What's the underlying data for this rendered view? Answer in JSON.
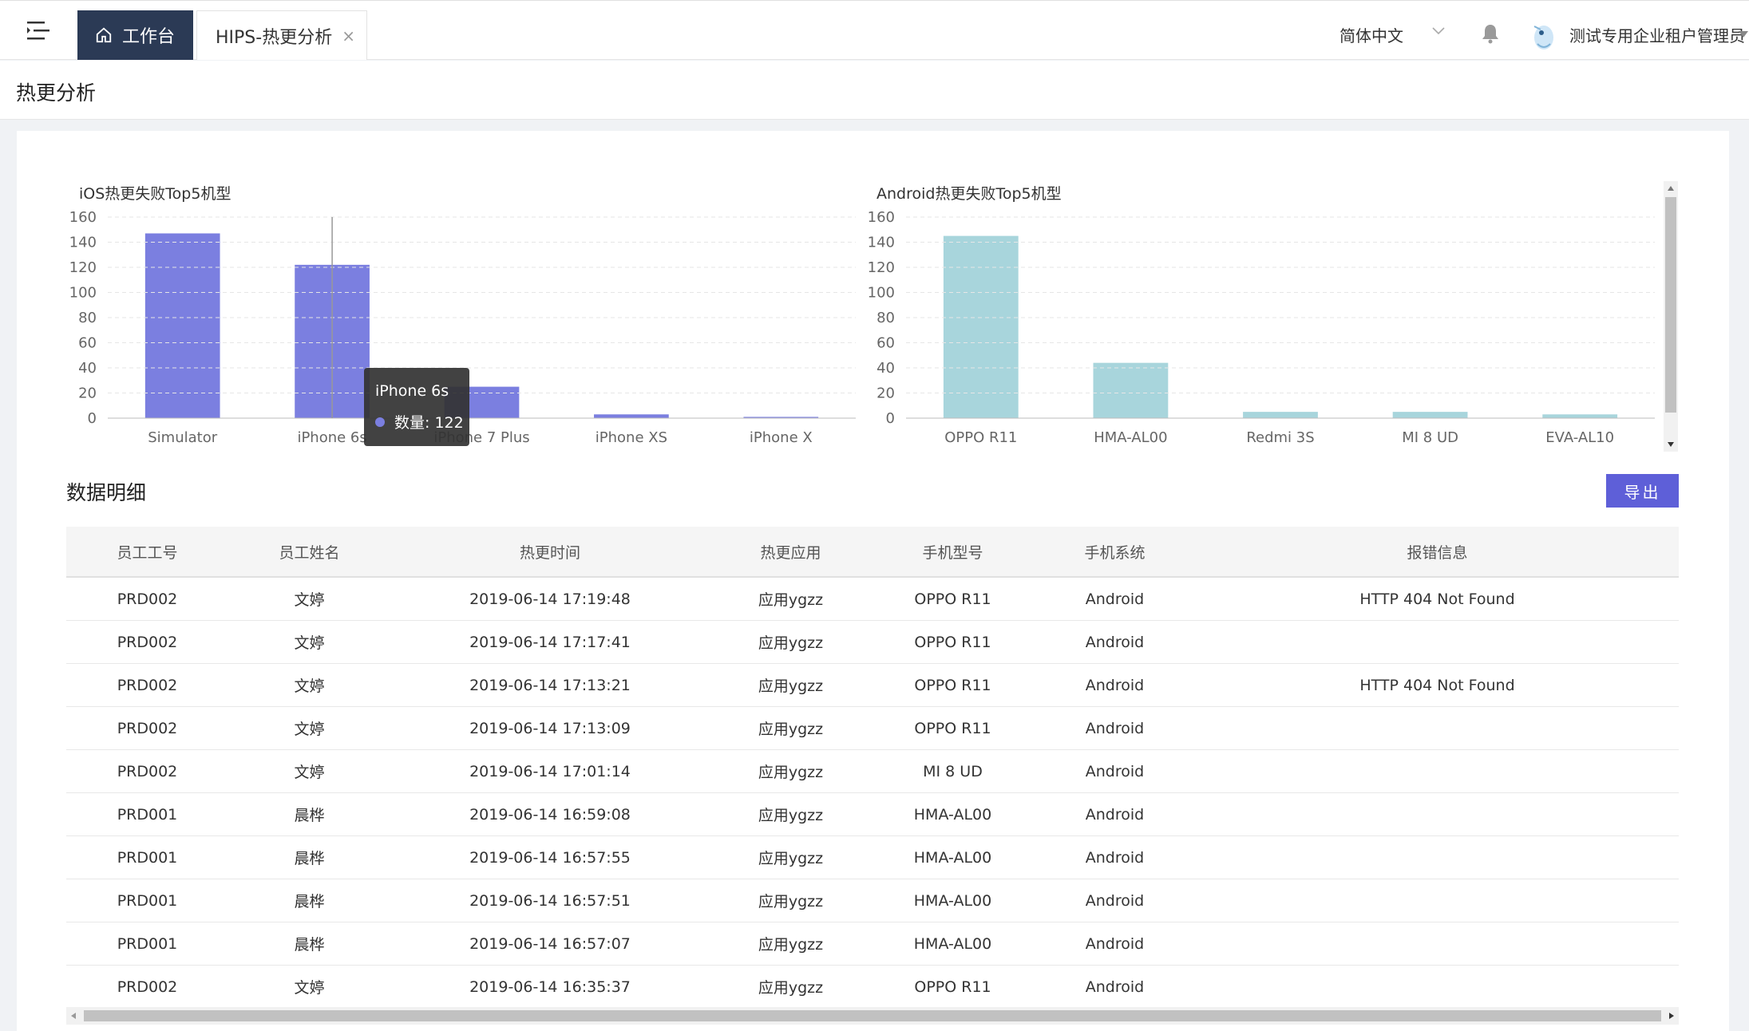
{
  "header": {
    "home_tab": "工作台",
    "active_tab": "HIPS-热更分析",
    "tab_close": "×",
    "language": "简体中文",
    "username": "测试专用企业租户管理员"
  },
  "page": {
    "title": "热更分析"
  },
  "ios_chart_title": "iOS热更失败Top5机型",
  "android_chart_title": "Android热更失败Top5机型",
  "tooltip": {
    "title": "iPhone 6s",
    "label": "数量: 122"
  },
  "chart_data": [
    {
      "type": "bar",
      "title": "iOS热更失败Top5机型",
      "categories": [
        "Simulator",
        "iPhone 6s",
        "iPhone 7 Plus",
        "iPhone XS",
        "iPhone X"
      ],
      "values": [
        147,
        122,
        25,
        3,
        1
      ],
      "ylim": [
        0,
        160
      ],
      "yticks": [
        0,
        20,
        40,
        60,
        80,
        100,
        120,
        140,
        160
      ],
      "color": "#7b7fe0",
      "xlabel": "",
      "ylabel": ""
    },
    {
      "type": "bar",
      "title": "Android热更失败Top5机型",
      "categories": [
        "OPPO R11",
        "HMA-AL00",
        "Redmi 3S",
        "MI 8 UD",
        "EVA-AL10"
      ],
      "values": [
        145,
        44,
        5,
        5,
        3
      ],
      "ylim": [
        0,
        160
      ],
      "yticks": [
        0,
        20,
        40,
        60,
        80,
        100,
        120,
        140,
        160
      ],
      "color": "#a8d5dc",
      "xlabel": "",
      "ylabel": ""
    }
  ],
  "details": {
    "title": "数据明细",
    "export_label": "导出",
    "columns": [
      "员工工号",
      "员工姓名",
      "热更时间",
      "热更应用",
      "手机型号",
      "手机系统",
      "报错信息"
    ],
    "rows": [
      [
        "PRD002",
        "文婷",
        "2019-06-14 17:19:48",
        "应用ygzz",
        "OPPO R11",
        "Android",
        "HTTP 404 Not Found"
      ],
      [
        "PRD002",
        "文婷",
        "2019-06-14 17:17:41",
        "应用ygzz",
        "OPPO R11",
        "Android",
        ""
      ],
      [
        "PRD002",
        "文婷",
        "2019-06-14 17:13:21",
        "应用ygzz",
        "OPPO R11",
        "Android",
        "HTTP 404 Not Found"
      ],
      [
        "PRD002",
        "文婷",
        "2019-06-14 17:13:09",
        "应用ygzz",
        "OPPO R11",
        "Android",
        ""
      ],
      [
        "PRD002",
        "文婷",
        "2019-06-14 17:01:14",
        "应用ygzz",
        "MI 8 UD",
        "Android",
        ""
      ],
      [
        "PRD001",
        "晨桦",
        "2019-06-14 16:59:08",
        "应用ygzz",
        "HMA-AL00",
        "Android",
        ""
      ],
      [
        "PRD001",
        "晨桦",
        "2019-06-14 16:57:55",
        "应用ygzz",
        "HMA-AL00",
        "Android",
        ""
      ],
      [
        "PRD001",
        "晨桦",
        "2019-06-14 16:57:51",
        "应用ygzz",
        "HMA-AL00",
        "Android",
        ""
      ],
      [
        "PRD001",
        "晨桦",
        "2019-06-14 16:57:07",
        "应用ygzz",
        "HMA-AL00",
        "Android",
        ""
      ],
      [
        "PRD002",
        "文婷",
        "2019-06-14 16:35:37",
        "应用ygzz",
        "OPPO R11",
        "Android",
        ""
      ]
    ]
  }
}
